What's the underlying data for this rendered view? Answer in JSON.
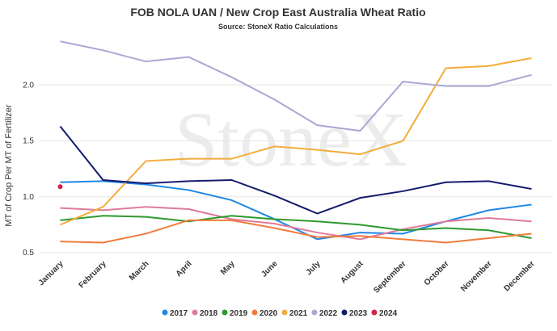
{
  "chart_data": {
    "type": "line",
    "title": "FOB NOLA UAN / New Crop East Australia Wheat Ratio",
    "subtitle": "Source: StoneX Ratio Calculations",
    "watermark": "StoneX",
    "y_label": "MT of Crop Per MT of Fertilizer",
    "categories": [
      "January",
      "February",
      "March",
      "April",
      "May",
      "June",
      "July",
      "August",
      "September",
      "October",
      "November",
      "December"
    ],
    "ylim": [
      0.5,
      2.5
    ],
    "yticks": [
      0.5,
      {
        "value": 1,
        "label": "1.0"
      },
      1.5,
      {
        "value": 2,
        "label": "2.0"
      }
    ],
    "grid": true,
    "legend": "bottom",
    "series": [
      {
        "name": "2017",
        "color": "#1e88e5",
        "values": [
          1.13,
          1.14,
          1.11,
          1.06,
          0.97,
          0.8,
          0.62,
          0.68,
          0.67,
          0.78,
          0.88,
          0.93
        ]
      },
      {
        "name": "2018",
        "color": "#e07b9a",
        "values": [
          0.9,
          0.88,
          0.91,
          0.89,
          0.8,
          0.76,
          0.68,
          0.62,
          0.71,
          0.78,
          0.81,
          0.78
        ]
      },
      {
        "name": "2019",
        "color": "#2e9a2e",
        "values": [
          0.79,
          0.83,
          0.82,
          0.78,
          0.83,
          0.8,
          0.78,
          0.75,
          0.7,
          0.72,
          0.7,
          0.63
        ]
      },
      {
        "name": "2020",
        "color": "#f07c3c",
        "values": [
          0.6,
          0.59,
          0.67,
          0.79,
          0.79,
          0.72,
          0.64,
          0.65,
          0.62,
          0.59,
          0.63,
          0.67
        ]
      },
      {
        "name": "2021",
        "color": "#f5ac3c",
        "values": [
          0.75,
          0.91,
          1.32,
          1.34,
          1.34,
          1.45,
          1.42,
          1.38,
          1.5,
          2.15,
          2.17,
          2.24
        ]
      },
      {
        "name": "2022",
        "color": "#a9a9d4",
        "values": [
          2.39,
          2.31,
          2.21,
          2.25,
          2.07,
          1.87,
          1.64,
          1.59,
          2.03,
          1.99,
          1.99,
          2.09
        ]
      },
      {
        "name": "2023",
        "color": "#141c6e",
        "values": [
          1.63,
          1.15,
          1.12,
          1.14,
          1.15,
          1.01,
          0.85,
          0.99,
          1.05,
          1.13,
          1.14,
          1.07
        ]
      },
      {
        "name": "2024",
        "color": "#d0254a",
        "values": [
          1.09,
          null,
          null,
          null,
          null,
          null,
          null,
          null,
          null,
          null,
          null,
          null
        ]
      }
    ]
  }
}
